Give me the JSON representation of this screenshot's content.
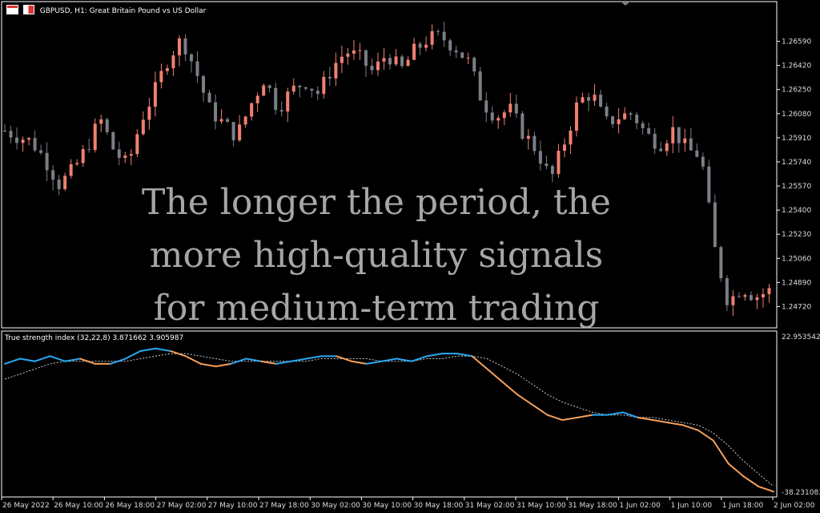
{
  "header": {
    "symbol_title": "GBPUSD, H1:  Great Britain Pound vs US Dollar",
    "indicator_title": "True strength index (32,22,8) 3.871662 3.905987"
  },
  "overlay_lines": [
    "The longer the period, the",
    "more high-quality signals",
    "for medium-term trading"
  ],
  "colors": {
    "bull": "#f08070",
    "bear": "#7a7e86",
    "tsi_up": "#2aa8f2",
    "tsi_down": "#f5a05a",
    "signal": "#cccccc",
    "grid": "#ffffff"
  },
  "chart_data": [
    {
      "type": "candlestick",
      "y_ticks": [
        1.2659,
        1.2642,
        1.2625,
        1.2608,
        1.2591,
        1.2574,
        1.2557,
        1.254,
        1.2523,
        1.2506,
        1.2489,
        1.2472
      ],
      "y_tick_labels": [
        "1.26590",
        "1.26420",
        "1.26250",
        "1.26080",
        "1.25910",
        "1.25740",
        "1.25570",
        "1.25400",
        "1.25230",
        "1.25060",
        "1.24890",
        "1.24720"
      ],
      "ylim": [
        1.2457,
        1.2687
      ],
      "x_labels": [
        "26 May 2022",
        "26 May 10:00",
        "26 May 18:00",
        "27 May 02:00",
        "27 May 10:00",
        "27 May 18:00",
        "30 May 02:00",
        "30 May 10:00",
        "30 May 18:00",
        "31 May 02:00",
        "31 May 10:00",
        "31 May 18:00",
        "1 Jun 02:00",
        "1 Jun 10:00",
        "1 Jun 18:00",
        "2 Jun 02:00"
      ],
      "close_path": [
        1.2596,
        1.2592,
        1.2588,
        1.2575,
        1.2558,
        1.2568,
        1.2584,
        1.2604,
        1.2582,
        1.2571,
        1.2604,
        1.2624,
        1.2648,
        1.2661,
        1.2638,
        1.2611,
        1.2601,
        1.2592,
        1.2614,
        1.2633,
        1.2612,
        1.2624,
        1.2631,
        1.2622,
        1.2641,
        1.2652,
        1.2647,
        1.2637,
        1.2651,
        1.2638,
        1.2652,
        1.2661,
        1.2662,
        1.2655,
        1.2644,
        1.2616,
        1.2606,
        1.2611,
        1.2594,
        1.2582,
        1.2561,
        1.2588,
        1.2616,
        1.2623,
        1.2601,
        1.2606,
        1.2608,
        1.2593,
        1.2587,
        1.2597,
        1.2582,
        1.2579,
        1.2513,
        1.2475,
        1.2486,
        1.2479,
        1.2483
      ]
    },
    {
      "type": "line",
      "name": "True strength index (32,22,8)",
      "value": 3.871662,
      "signal_value": 3.905987,
      "ylim": [
        -38.231083,
        22.953542
      ],
      "y_tick_labels": [
        "22.953542",
        "-38.231083"
      ],
      "tsi_path": [
        12,
        14,
        13,
        15,
        13,
        14,
        12,
        12,
        14,
        17,
        18,
        17,
        15,
        12,
        11,
        12,
        14,
        13,
        12,
        13,
        14,
        15,
        15,
        13,
        12,
        13,
        14,
        13,
        15,
        16,
        16,
        15,
        10,
        5,
        0,
        -4,
        -8,
        -10,
        -9,
        -8,
        -8,
        -7,
        -9,
        -10,
        -11,
        -12,
        -14,
        -18,
        -27,
        -32,
        -36,
        -38
      ],
      "signal_path": [
        6,
        8,
        10,
        12,
        13,
        13,
        13,
        13,
        13,
        14,
        15,
        16,
        16,
        15,
        14,
        13,
        13,
        13,
        13,
        13,
        13,
        14,
        14,
        14,
        14,
        13,
        13,
        13,
        14,
        14,
        15,
        15,
        14,
        11,
        8,
        4,
        0,
        -3,
        -5,
        -7,
        -8,
        -8,
        -9,
        -9,
        -10,
        -11,
        -12,
        -15,
        -20,
        -26,
        -31,
        -36
      ]
    }
  ]
}
